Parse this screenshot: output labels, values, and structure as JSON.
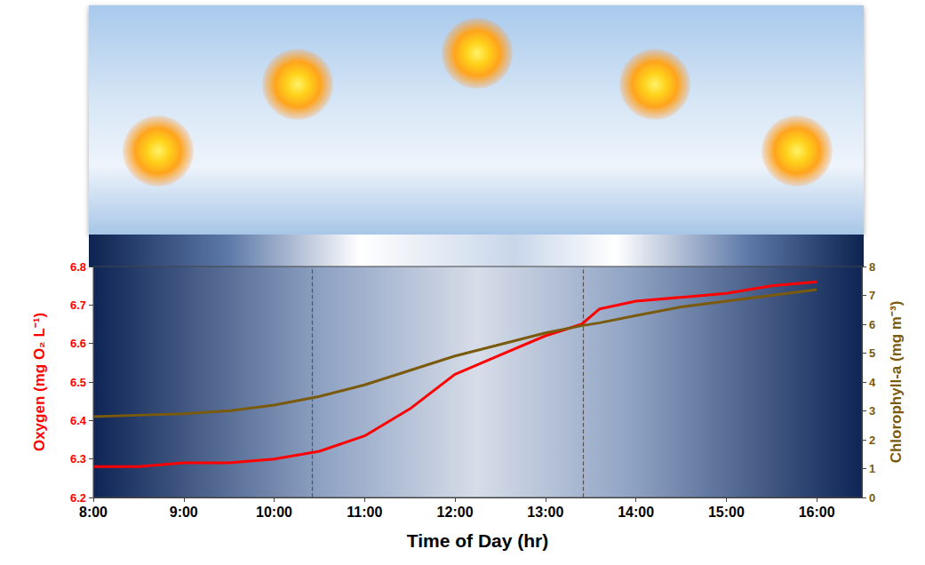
{
  "chart_data": {
    "type": "line",
    "x_label": "Time of Day (hr)",
    "x": [
      8,
      8.5,
      9,
      9.5,
      10,
      10.5,
      11,
      11.5,
      12,
      12.5,
      13,
      13.4,
      13.6,
      14,
      14.5,
      15,
      15.5,
      16
    ],
    "xlim": [
      8,
      16.5
    ],
    "xticks": [
      {
        "value": 8,
        "label": "8:00"
      },
      {
        "value": 9,
        "label": "9:00"
      },
      {
        "value": 10,
        "label": "10:00"
      },
      {
        "value": 11,
        "label": "11:00"
      },
      {
        "value": 12,
        "label": "12:00"
      },
      {
        "value": 13,
        "label": "13:00"
      },
      {
        "value": 14,
        "label": "14:00"
      },
      {
        "value": 15,
        "label": "15:00"
      },
      {
        "value": 16,
        "label": "16:00"
      }
    ],
    "y_label": "Oxygen (mg O₂ L⁻¹)",
    "ylim": [
      6.2,
      6.8
    ],
    "yticks": [
      6.2,
      6.3,
      6.4,
      6.5,
      6.6,
      6.7,
      6.8
    ],
    "y2_label": "Chlorophyll-a (mg m⁻³)",
    "y2lim": [
      0,
      8
    ],
    "y2ticks": [
      0,
      1,
      2,
      3,
      4,
      5,
      6,
      7,
      8
    ],
    "phase_boundaries": [
      10.42,
      13.42
    ],
    "grid": false,
    "series": [
      {
        "name": "Oxygen",
        "color": "#ff0000",
        "axis": "y",
        "values": [
          6.28,
          6.28,
          6.29,
          6.29,
          6.3,
          6.32,
          6.36,
          6.43,
          6.52,
          6.57,
          6.62,
          6.65,
          6.69,
          6.71,
          6.72,
          6.73,
          6.75,
          6.76
        ]
      },
      {
        "name": "Chlorophyll-a",
        "color": "#7a5a0c",
        "axis": "y2",
        "values": [
          2.8,
          2.85,
          2.9,
          3.0,
          3.2,
          3.5,
          3.9,
          4.4,
          4.9,
          5.3,
          5.7,
          5.95,
          6.05,
          6.3,
          6.6,
          6.8,
          7.0,
          7.2
        ]
      }
    ]
  }
}
